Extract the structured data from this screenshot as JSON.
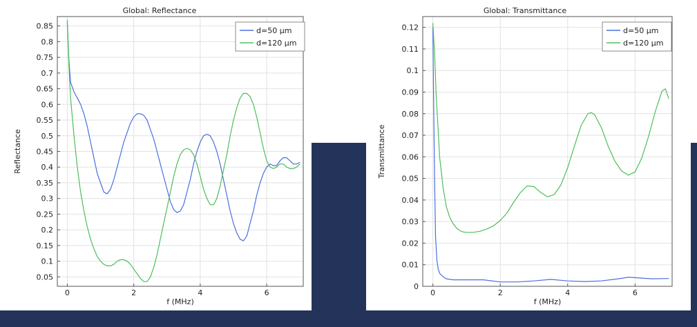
{
  "chart_data": [
    {
      "type": "line",
      "title": "Global: Reflectance",
      "xlabel": "f (MHz)",
      "ylabel": "Reflectance",
      "xlim": [
        -0.3,
        7.1
      ],
      "ylim": [
        0.02,
        0.88
      ],
      "xticks": [
        0,
        2,
        4,
        6
      ],
      "yticks": [
        0.05,
        0.1,
        0.15,
        0.2,
        0.25,
        0.3,
        0.35,
        0.4,
        0.45,
        0.5,
        0.55,
        0.6,
        0.65,
        0.7,
        0.75,
        0.8,
        0.85
      ],
      "ytick_labels": [
        "0.05",
        "0.1",
        "0.15",
        "0.2",
        "0.25",
        "0.3",
        "0.35",
        "0.4",
        "0.45",
        "0.5",
        "0.55",
        "0.6",
        "0.65",
        "0.7",
        "0.75",
        "0.8",
        "0.85"
      ],
      "grid": true,
      "legend_position": "top-right",
      "series": [
        {
          "name": "d=50 μm",
          "color": "#4a6ee0",
          "x": [
            0,
            0.05,
            0.1,
            0.2,
            0.3,
            0.4,
            0.5,
            0.6,
            0.7,
            0.8,
            0.9,
            1.0,
            1.1,
            1.2,
            1.3,
            1.4,
            1.5,
            1.6,
            1.7,
            1.8,
            1.9,
            2.0,
            2.1,
            2.2,
            2.3,
            2.4,
            2.5,
            2.6,
            2.7,
            2.8,
            2.9,
            3.0,
            3.1,
            3.2,
            3.3,
            3.4,
            3.5,
            3.6,
            3.7,
            3.8,
            3.9,
            4.0,
            4.1,
            4.2,
            4.3,
            4.4,
            4.5,
            4.6,
            4.7,
            4.8,
            4.9,
            5.0,
            5.1,
            5.2,
            5.3,
            5.4,
            5.5,
            5.6,
            5.7,
            5.8,
            5.9,
            6.0,
            6.1,
            6.2,
            6.3,
            6.4,
            6.5,
            6.6,
            6.7,
            6.8,
            6.9,
            7.0
          ],
          "y": [
            0.86,
            0.74,
            0.67,
            0.64,
            0.62,
            0.6,
            0.57,
            0.53,
            0.48,
            0.43,
            0.38,
            0.35,
            0.32,
            0.315,
            0.33,
            0.36,
            0.4,
            0.44,
            0.48,
            0.51,
            0.54,
            0.56,
            0.57,
            0.57,
            0.565,
            0.55,
            0.52,
            0.49,
            0.45,
            0.41,
            0.37,
            0.33,
            0.29,
            0.265,
            0.255,
            0.26,
            0.28,
            0.32,
            0.36,
            0.41,
            0.45,
            0.48,
            0.5,
            0.505,
            0.5,
            0.48,
            0.45,
            0.41,
            0.36,
            0.31,
            0.26,
            0.22,
            0.19,
            0.17,
            0.165,
            0.18,
            0.22,
            0.26,
            0.31,
            0.35,
            0.38,
            0.4,
            0.41,
            0.405,
            0.405,
            0.42,
            0.43,
            0.43,
            0.42,
            0.41,
            0.41,
            0.415
          ]
        },
        {
          "name": "d=120 μm",
          "color": "#4dbd5a",
          "x": [
            0,
            0.05,
            0.1,
            0.2,
            0.3,
            0.4,
            0.5,
            0.6,
            0.7,
            0.8,
            0.9,
            1.0,
            1.1,
            1.2,
            1.3,
            1.4,
            1.5,
            1.6,
            1.7,
            1.8,
            1.9,
            2.0,
            2.1,
            2.2,
            2.3,
            2.4,
            2.5,
            2.6,
            2.7,
            2.8,
            2.9,
            3.0,
            3.1,
            3.2,
            3.3,
            3.4,
            3.5,
            3.6,
            3.7,
            3.8,
            3.9,
            4.0,
            4.1,
            4.2,
            4.3,
            4.4,
            4.5,
            4.6,
            4.7,
            4.8,
            4.9,
            5.0,
            5.1,
            5.2,
            5.3,
            5.4,
            5.5,
            5.6,
            5.7,
            5.8,
            5.9,
            6.0,
            6.1,
            6.2,
            6.3,
            6.4,
            6.5,
            6.6,
            6.7,
            6.8,
            6.9,
            7.0
          ],
          "y": [
            0.87,
            0.72,
            0.62,
            0.5,
            0.4,
            0.32,
            0.26,
            0.21,
            0.17,
            0.14,
            0.115,
            0.1,
            0.09,
            0.085,
            0.085,
            0.09,
            0.1,
            0.105,
            0.105,
            0.1,
            0.09,
            0.075,
            0.06,
            0.045,
            0.035,
            0.035,
            0.05,
            0.08,
            0.12,
            0.17,
            0.22,
            0.27,
            0.32,
            0.37,
            0.41,
            0.44,
            0.455,
            0.46,
            0.455,
            0.44,
            0.41,
            0.37,
            0.33,
            0.3,
            0.28,
            0.28,
            0.3,
            0.34,
            0.39,
            0.44,
            0.5,
            0.55,
            0.59,
            0.62,
            0.635,
            0.635,
            0.625,
            0.6,
            0.56,
            0.51,
            0.46,
            0.42,
            0.4,
            0.395,
            0.4,
            0.41,
            0.41,
            0.4,
            0.395,
            0.395,
            0.4,
            0.41
          ]
        }
      ]
    },
    {
      "type": "line",
      "title": "Global: Transmittance",
      "xlabel": "f (MHz)",
      "ylabel": "Transmittance",
      "xlim": [
        -0.3,
        7.1
      ],
      "ylim": [
        0,
        0.125
      ],
      "xticks": [
        0,
        2,
        4,
        6
      ],
      "yticks": [
        0,
        0.01,
        0.02,
        0.03,
        0.04,
        0.05,
        0.06,
        0.07,
        0.08,
        0.09,
        0.1,
        0.11,
        0.12
      ],
      "ytick_labels": [
        "0",
        "0.01",
        "0.02",
        "0.03",
        "0.04",
        "0.05",
        "0.06",
        "0.07",
        "0.08",
        "0.09",
        "0.1",
        "0.11",
        "0.12"
      ],
      "grid": true,
      "legend_position": "top-right",
      "series": [
        {
          "name": "d=50 μm",
          "color": "#4a6ee0",
          "x": [
            0,
            0.02,
            0.05,
            0.08,
            0.12,
            0.16,
            0.2,
            0.3,
            0.4,
            0.6,
            0.8,
            1.0,
            1.5,
            2.0,
            2.5,
            3.0,
            3.5,
            4.0,
            4.5,
            5.0,
            5.5,
            5.8,
            6.0,
            6.5,
            7.0
          ],
          "y": [
            0.12,
            0.09,
            0.05,
            0.023,
            0.012,
            0.008,
            0.006,
            0.0045,
            0.0035,
            0.003,
            0.003,
            0.003,
            0.003,
            0.002,
            0.002,
            0.0025,
            0.0032,
            0.0025,
            0.0022,
            0.0025,
            0.0035,
            0.0042,
            0.004,
            0.0035,
            0.0036
          ]
        },
        {
          "name": "d=120 μm",
          "color": "#4dbd5a",
          "x": [
            0,
            0.05,
            0.1,
            0.15,
            0.2,
            0.3,
            0.4,
            0.5,
            0.6,
            0.7,
            0.8,
            0.9,
            1.0,
            1.2,
            1.4,
            1.6,
            1.8,
            2.0,
            2.2,
            2.4,
            2.6,
            2.8,
            3.0,
            3.2,
            3.4,
            3.6,
            3.8,
            4.0,
            4.2,
            4.4,
            4.6,
            4.7,
            4.8,
            5.0,
            5.2,
            5.4,
            5.6,
            5.8,
            6.0,
            6.2,
            6.4,
            6.6,
            6.8,
            6.9,
            7.0
          ],
          "y": [
            0.122,
            0.108,
            0.088,
            0.074,
            0.06,
            0.046,
            0.037,
            0.032,
            0.029,
            0.027,
            0.0258,
            0.0252,
            0.025,
            0.025,
            0.0255,
            0.0265,
            0.028,
            0.0305,
            0.034,
            0.039,
            0.0435,
            0.0465,
            0.0462,
            0.0435,
            0.0415,
            0.0425,
            0.047,
            0.055,
            0.065,
            0.0745,
            0.08,
            0.0805,
            0.0795,
            0.0735,
            0.065,
            0.058,
            0.0535,
            0.0515,
            0.053,
            0.0595,
            0.0695,
            0.081,
            0.0905,
            0.0915,
            0.087
          ]
        }
      ]
    }
  ]
}
